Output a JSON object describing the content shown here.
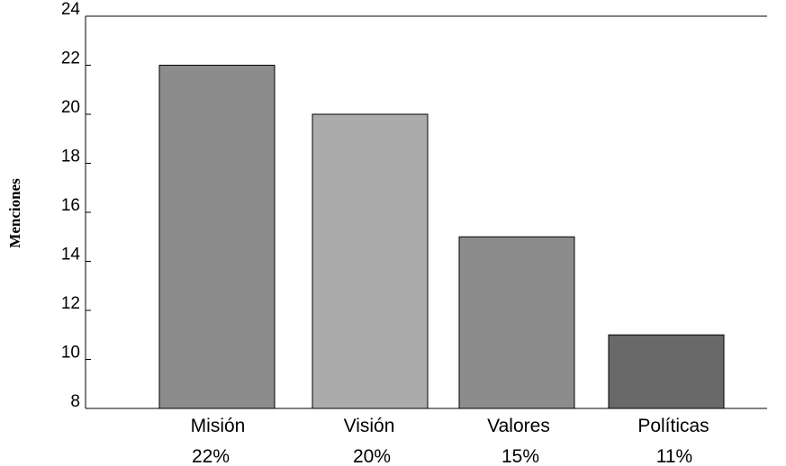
{
  "chart_data": {
    "type": "bar",
    "title": "",
    "xlabel": "",
    "ylabel": "Menciones",
    "ylim": [
      8,
      24
    ],
    "yticks": [
      8,
      10,
      12,
      14,
      16,
      18,
      20,
      22,
      24
    ],
    "grid": false,
    "legend": "none",
    "categories": [
      "Misión",
      "Visión",
      "Valores",
      "Políticas"
    ],
    "values": [
      22,
      20,
      15,
      11
    ],
    "percent_labels": [
      "22%",
      "20%",
      "15%",
      "11%"
    ],
    "bar_colors": [
      "#8c8c8c",
      "#ababab",
      "#8c8c8c",
      "#696969"
    ]
  }
}
